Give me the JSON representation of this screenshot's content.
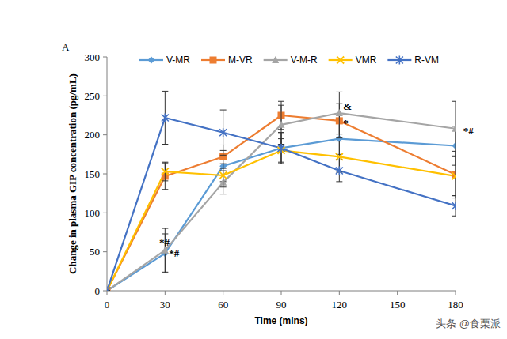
{
  "chart_data": {
    "type": "line",
    "title": "A",
    "x_label": "Time (mins)",
    "y_label": "Change in plasma GIP concentration (pg/mL)",
    "watermark": "头条 @食栗派",
    "x": [
      0,
      30,
      60,
      90,
      120,
      180
    ],
    "xlim": [
      0,
      180
    ],
    "xticks": [
      0,
      30,
      60,
      90,
      120,
      150,
      180
    ],
    "ylim": [
      0,
      300
    ],
    "yticks": [
      0,
      50,
      100,
      150,
      200,
      250,
      300
    ],
    "grid": false,
    "legend": "top",
    "series": [
      {
        "name": "V-MR",
        "color": "#5B9BD5",
        "marker": "diamond",
        "values": [
          0,
          48,
          160,
          183,
          195,
          186
        ],
        "errors": [
          0,
          25,
          20,
          20,
          20,
          25
        ]
      },
      {
        "name": "M-VR",
        "color": "#ED7D31",
        "marker": "square",
        "values": [
          0,
          147,
          172,
          225,
          218,
          149
        ],
        "errors": [
          0,
          17,
          15,
          18,
          22,
          30
        ]
      },
      {
        "name": "V-M-R",
        "color": "#A5A5A5",
        "marker": "triangle",
        "values": [
          0,
          52,
          139,
          213,
          228,
          208
        ],
        "errors": [
          0,
          28,
          15,
          25,
          27,
          35
        ]
      },
      {
        "name": "VMR",
        "color": "#FFC000",
        "marker": "x",
        "values": [
          0,
          153,
          148,
          180,
          172,
          147
        ],
        "errors": [
          0,
          12,
          15,
          15,
          20,
          25
        ]
      },
      {
        "name": "R-VM",
        "color": "#4472C4",
        "marker": "asterisk",
        "values": [
          0,
          222,
          203,
          183,
          154,
          109
        ],
        "errors": [
          0,
          34,
          29,
          20,
          14,
          13
        ]
      }
    ],
    "annotations": [
      {
        "text": "*#",
        "x": 27,
        "y": 62
      },
      {
        "text": "*#",
        "x": 32,
        "y": 48
      },
      {
        "text": "&",
        "x": 122,
        "y": 237
      },
      {
        "text": "*",
        "x": 122,
        "y": 215
      },
      {
        "text": "*#",
        "x": 184,
        "y": 205
      }
    ]
  }
}
